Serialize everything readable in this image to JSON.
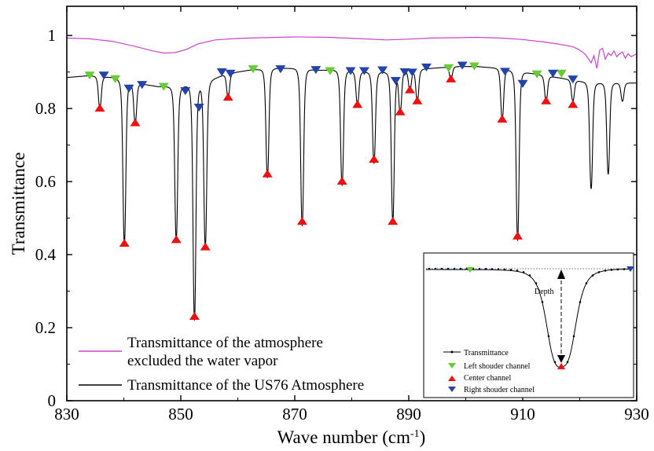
{
  "chart_data": {
    "type": "line",
    "title": "",
    "xlabel": "Wave number (cm",
    "xlabel_sup": "-1",
    "xlabel_close": ")",
    "ylabel": "Transmittance",
    "xlim": [
      830,
      930
    ],
    "ylim": [
      0,
      1.08
    ],
    "xticks": [
      830,
      850,
      870,
      890,
      910,
      930
    ],
    "xtick_labels": [
      "830",
      "850",
      "870",
      "890",
      "910",
      "930"
    ],
    "yticks": [
      0,
      0.2,
      0.4,
      0.6,
      0.8,
      1
    ],
    "ytick_labels": [
      "0",
      "0.2",
      "0.4",
      "0.6",
      "0.8",
      "1"
    ],
    "grid": false,
    "legend_position": "bottom-left",
    "series": [
      {
        "name": "Transmittance of the atmosphere excluded the water vapor",
        "legend_lines": [
          "Transmittance of the atmosphere",
          "excluded the water vapor"
        ],
        "color": "#cc44cc",
        "x": [
          830,
          834,
          838,
          842,
          845,
          847,
          849,
          851,
          853,
          856,
          860,
          864,
          870,
          876,
          882,
          886,
          890,
          894,
          898,
          902,
          906,
          910,
          914,
          916,
          918,
          919,
          920,
          921,
          922,
          922.5,
          923,
          923.5,
          924,
          924.5,
          925,
          925.5,
          926,
          926.5,
          927,
          927.5,
          928,
          928.5,
          929,
          930
        ],
        "y": [
          0.993,
          0.991,
          0.984,
          0.97,
          0.958,
          0.952,
          0.953,
          0.962,
          0.977,
          0.988,
          0.992,
          0.994,
          0.996,
          0.995,
          0.991,
          0.988,
          0.99,
          0.993,
          0.994,
          0.995,
          0.993,
          0.989,
          0.982,
          0.977,
          0.972,
          0.968,
          0.96,
          0.948,
          0.925,
          0.945,
          0.91,
          0.96,
          0.965,
          0.935,
          0.952,
          0.945,
          0.958,
          0.942,
          0.95,
          0.955,
          0.938,
          0.95,
          0.942,
          0.95
        ]
      },
      {
        "name": "Transmittance of the US76 Atmosphere",
        "legend_lines": [
          "Transmittance of the US76 Atmosphere"
        ],
        "color": "#000000",
        "baseline": [
          [
            830,
            0.885
          ],
          [
            834,
            0.89
          ],
          [
            838,
            0.885
          ],
          [
            842,
            0.87
          ],
          [
            846,
            0.86
          ],
          [
            850,
            0.86
          ],
          [
            854,
            0.87
          ],
          [
            858,
            0.895
          ],
          [
            862,
            0.905
          ],
          [
            866,
            0.91
          ],
          [
            870,
            0.91
          ],
          [
            874,
            0.905
          ],
          [
            878,
            0.905
          ],
          [
            882,
            0.9
          ],
          [
            886,
            0.9
          ],
          [
            890,
            0.905
          ],
          [
            894,
            0.91
          ],
          [
            898,
            0.915
          ],
          [
            902,
            0.915
          ],
          [
            906,
            0.91
          ],
          [
            910,
            0.9
          ],
          [
            914,
            0.89
          ],
          [
            918,
            0.88
          ],
          [
            922,
            0.87
          ],
          [
            926,
            0.87
          ],
          [
            930,
            0.87
          ]
        ],
        "lines": [
          [
            835.8,
            0.8
          ],
          [
            840.1,
            0.43
          ],
          [
            842.0,
            0.76
          ],
          [
            849.2,
            0.44
          ],
          [
            852.4,
            0.22
          ],
          [
            854.3,
            0.42
          ],
          [
            858.3,
            0.83
          ],
          [
            865.2,
            0.61
          ],
          [
            871.3,
            0.48
          ],
          [
            878.3,
            0.59
          ],
          [
            881.0,
            0.81
          ],
          [
            883.9,
            0.65
          ],
          [
            887.2,
            0.49
          ],
          [
            888.5,
            0.79
          ],
          [
            890.2,
            0.85
          ],
          [
            891.5,
            0.82
          ],
          [
            897.4,
            0.88
          ],
          [
            906.4,
            0.77
          ],
          [
            909.1,
            0.44
          ],
          [
            914.1,
            0.82
          ],
          [
            918.8,
            0.82
          ],
          [
            922.0,
            0.58
          ],
          [
            925.0,
            0.62
          ],
          [
            927.5,
            0.82
          ]
        ]
      }
    ],
    "markers": {
      "center": {
        "name": "Center channel",
        "color": "#ee1111",
        "points": [
          [
            835.8,
            0.8
          ],
          [
            840.1,
            0.43
          ],
          [
            842.0,
            0.76
          ],
          [
            849.2,
            0.44
          ],
          [
            852.4,
            0.23
          ],
          [
            854.3,
            0.42
          ],
          [
            858.3,
            0.83
          ],
          [
            865.2,
            0.62
          ],
          [
            871.3,
            0.49
          ],
          [
            878.3,
            0.6
          ],
          [
            881.0,
            0.81
          ],
          [
            883.9,
            0.66
          ],
          [
            887.2,
            0.49
          ],
          [
            888.5,
            0.79
          ],
          [
            890.2,
            0.85
          ],
          [
            891.5,
            0.82
          ],
          [
            897.4,
            0.88
          ],
          [
            906.4,
            0.77
          ],
          [
            909.1,
            0.45
          ],
          [
            914.1,
            0.82
          ],
          [
            918.8,
            0.81
          ]
        ]
      },
      "left": {
        "name": "Left shoulder channel",
        "color": "#66cc33",
        "points": [
          [
            834.0,
            0.888
          ],
          [
            838.5,
            0.878
          ],
          [
            847.0,
            0.857
          ],
          [
            862.7,
            0.905
          ],
          [
            876.2,
            0.9
          ],
          [
            897.0,
            0.908
          ],
          [
            901.5,
            0.913
          ],
          [
            912.5,
            0.891
          ],
          [
            916.8,
            0.893
          ]
        ]
      },
      "right": {
        "name": "Right shoulder channel",
        "color": "#2244aa",
        "points": [
          [
            836.5,
            0.888
          ],
          [
            840.9,
            0.852
          ],
          [
            843.2,
            0.862
          ],
          [
            850.8,
            0.845
          ],
          [
            853.2,
            0.8
          ],
          [
            857.2,
            0.897
          ],
          [
            858.7,
            0.893
          ],
          [
            867.5,
            0.905
          ],
          [
            873.7,
            0.903
          ],
          [
            879.8,
            0.9
          ],
          [
            882.2,
            0.9
          ],
          [
            885.4,
            0.902
          ],
          [
            887.7,
            0.873
          ],
          [
            889.3,
            0.897
          ],
          [
            890.6,
            0.896
          ],
          [
            893.1,
            0.91
          ],
          [
            899.4,
            0.915
          ],
          [
            906.9,
            0.898
          ],
          [
            910.0,
            0.865
          ],
          [
            915.3,
            0.893
          ],
          [
            918.8,
            0.877
          ]
        ]
      }
    },
    "inset": {
      "legend": [
        "Transmittance",
        "Left shouder channel",
        "Center channel",
        "Right shouder channel"
      ],
      "annotation": "Depth"
    }
  }
}
